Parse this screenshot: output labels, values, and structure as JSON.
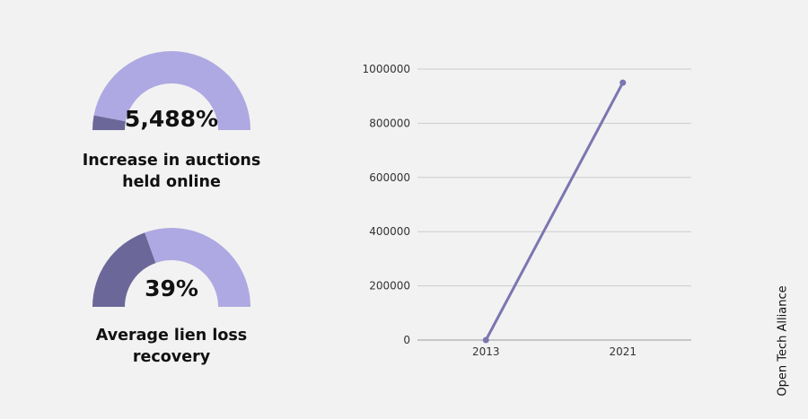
{
  "colors": {
    "light": "#aea9e2",
    "dark": "#6c6799",
    "line": "#7b76b2",
    "grid": "#cccccc"
  },
  "gauges": [
    {
      "value_text": "5,488%",
      "caption_line1": "Increase in auctions",
      "caption_line2": "held online",
      "fill_fraction": 0.06
    },
    {
      "value_text": "39%",
      "caption_line1": "Average lien loss",
      "caption_line2": "recovery",
      "fill_fraction": 0.39
    }
  ],
  "credit": "Open Tech Alliance",
  "chart_data": {
    "type": "line",
    "x": [
      "2013",
      "2021"
    ],
    "series": [
      {
        "values": [
          0,
          950000
        ]
      }
    ],
    "ylim": [
      0,
      1000000
    ],
    "yticks": [
      "0",
      "200000",
      "400000",
      "600000",
      "800000",
      "1000000"
    ],
    "grid": true,
    "title": "",
    "xlabel": "",
    "ylabel": ""
  }
}
